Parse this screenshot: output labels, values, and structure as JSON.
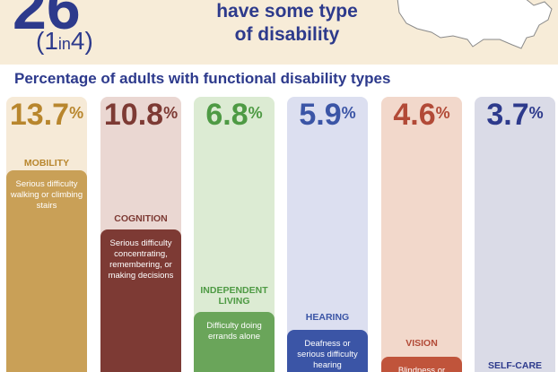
{
  "header": {
    "big_number": "26",
    "ratio_one": "1",
    "ratio_in": "in",
    "ratio_four": "4",
    "headline_line1": "have some type",
    "headline_line2": "of disability"
  },
  "subtitle": "Percentage of adults with functional disability types",
  "chart_data": {
    "type": "bar",
    "title": "Percentage of adults with functional disability types",
    "categories": [
      "MOBILITY",
      "COGNITION",
      "INDEPENDENT LIVING",
      "HEARING",
      "VISION",
      "SELF-CARE"
    ],
    "values": [
      13.7,
      10.8,
      6.8,
      5.9,
      4.6,
      3.7
    ],
    "value_labels": [
      "13.7",
      "10.8",
      "6.8",
      "5.9",
      "4.6",
      "3.7"
    ],
    "unit": "%",
    "descriptions": [
      "Serious difficulty walking or climbing stairs",
      "Serious difficulty concentrating, remembering, or making decisions",
      "Difficulty doing errands alone",
      "Deafness or serious difficulty hearing",
      "Blindness or",
      ""
    ],
    "colors": [
      "#c9a057",
      "#7d3a34",
      "#6aa55a",
      "#3b55a6",
      "#c0543b",
      "#2d3a8c"
    ],
    "background_colors": [
      "#f6ead7",
      "#ead7d2",
      "#dcebd3",
      "#dcdff0",
      "#f2d8cb",
      "#dadbe7"
    ],
    "text_colors": [
      "#b8862d",
      "#7d3a34",
      "#4e9a44",
      "#3b55a6",
      "#b24a37",
      "#2d3a8c"
    ]
  }
}
